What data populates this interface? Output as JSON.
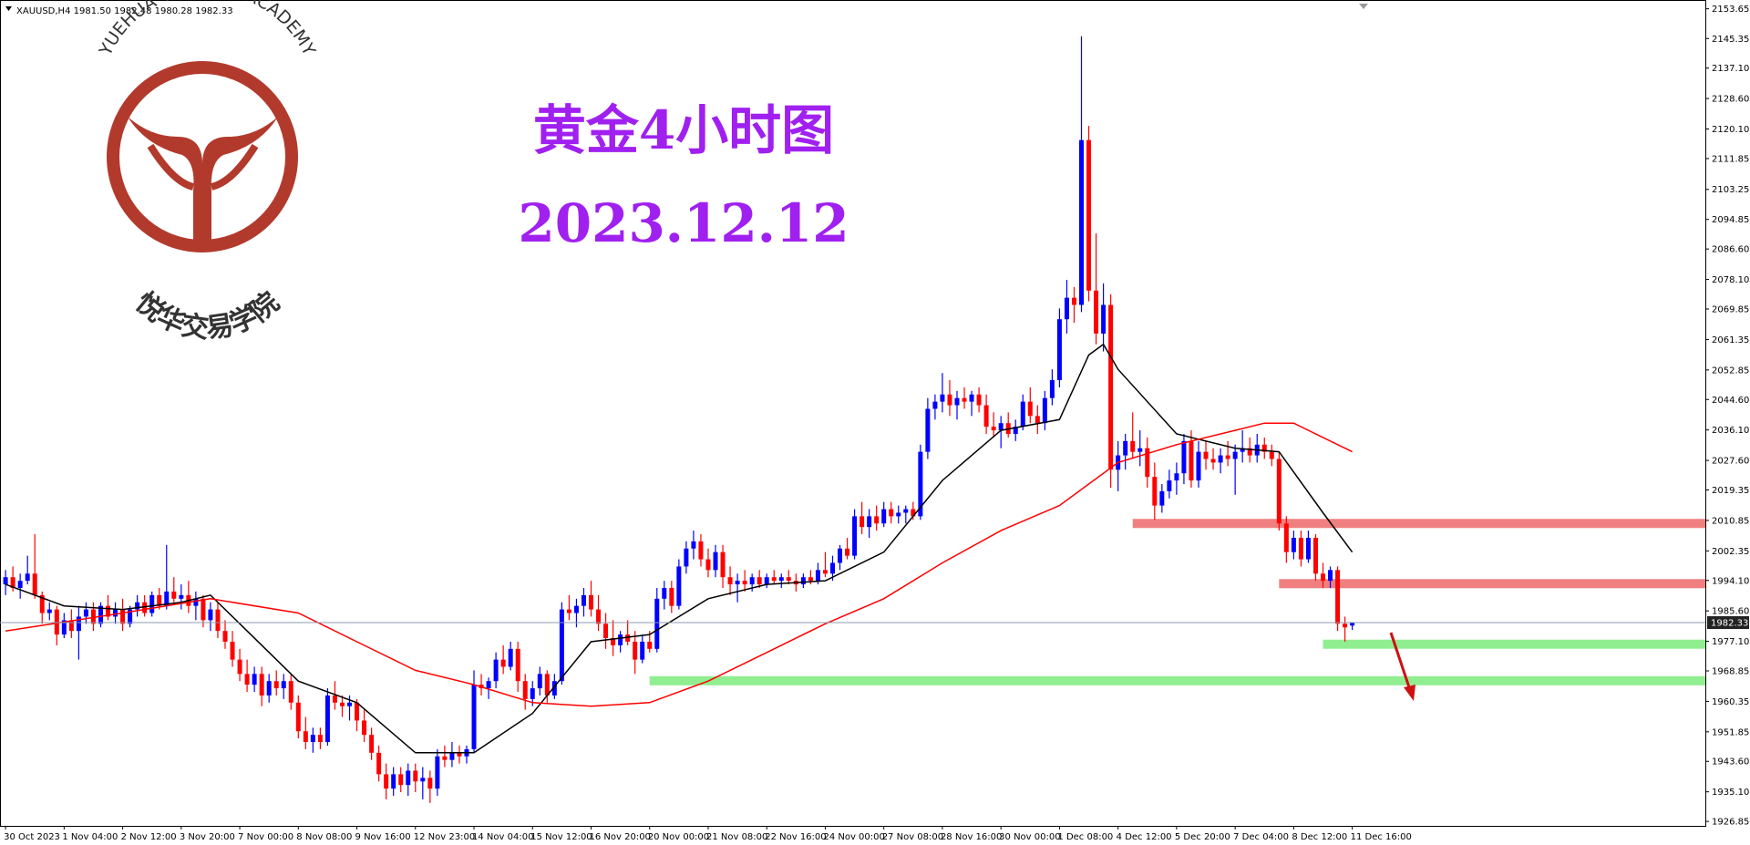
{
  "chart_data": {
    "type": "candlestick",
    "header": "XAUUSD,H4  1981.50 1982.48 1980.28 1982.33",
    "title": "黄金4小时图",
    "subtitle": "2023.12.12",
    "logo": {
      "arc_text": "YUEHUA TRADING ACADEMY",
      "name": "悦华交易学院"
    },
    "up_color": "#0000ff",
    "down_color": "#ff0000",
    "ylim": [
      1925.6,
      2156.1
    ],
    "yticks": [
      2153.65,
      2145.35,
      {
        "value": 2137.1,
        "label": "2137.10"
      },
      {
        "value": 2128.6,
        "label": "2128.60"
      },
      {
        "value": 2120.1,
        "label": "2120.10"
      },
      2111.85,
      2103.25,
      2094.85,
      {
        "value": 2086.6,
        "label": "2086.60"
      },
      {
        "value": 2078.1,
        "label": "2078.10"
      },
      2069.85,
      2061.35,
      2052.85,
      {
        "value": 2044.6,
        "label": "2044.60"
      },
      {
        "value": 2036.1,
        "label": "2036.10"
      },
      {
        "value": 2027.6,
        "label": "2027.60"
      },
      2019.35,
      2010.85,
      2002.35,
      {
        "value": 1994.1,
        "label": "1994.10"
      },
      {
        "value": 1985.6,
        "label": "1985.60"
      },
      {
        "value": 1977.1,
        "label": "1977.10"
      },
      1968.85,
      1960.35,
      1951.85,
      {
        "value": 1943.6,
        "label": "1943.60"
      },
      {
        "value": 1935.1,
        "label": "1935.10"
      },
      1926.85
    ],
    "current_price": {
      "value": 1982.33,
      "label": "1982.33"
    },
    "categories": [
      "30 Oct 2023",
      null,
      null,
      null,
      null,
      null,
      null,
      null,
      "1 Nov 04:00",
      null,
      null,
      null,
      null,
      null,
      null,
      null,
      "2 Nov 12:00",
      null,
      null,
      null,
      null,
      null,
      null,
      null,
      "3 Nov 20:00",
      null,
      null,
      null,
      null,
      null,
      null,
      null,
      "7 Nov 00:00",
      null,
      null,
      null,
      null,
      null,
      null,
      null,
      "8 Nov 08:00",
      null,
      null,
      null,
      null,
      null,
      null,
      null,
      "9 Nov 16:00",
      null,
      null,
      null,
      null,
      null,
      null,
      null,
      "12 Nov 23:00",
      null,
      null,
      null,
      null,
      null,
      null,
      null,
      "14 Nov 04:00",
      null,
      null,
      null,
      null,
      null,
      null,
      null,
      "15 Nov 12:00",
      null,
      null,
      null,
      null,
      null,
      null,
      null,
      "16 Nov 20:00",
      null,
      null,
      null,
      null,
      null,
      null,
      null,
      "20 Nov 00:00",
      null,
      null,
      null,
      null,
      null,
      null,
      null,
      "21 Nov 08:00",
      null,
      null,
      null,
      null,
      null,
      null,
      null,
      "22 Nov 16:00",
      null,
      null,
      null,
      null,
      null,
      null,
      null,
      "24 Nov 00:00",
      null,
      null,
      null,
      null,
      null,
      null,
      null,
      "27 Nov 08:00",
      null,
      null,
      null,
      null,
      null,
      null,
      null,
      "28 Nov 16:00",
      null,
      null,
      null,
      null,
      null,
      null,
      null,
      "30 Nov 00:00",
      null,
      null,
      null,
      null,
      null,
      null,
      null,
      "1 Dec 08:00",
      null,
      null,
      null,
      null,
      null,
      null,
      null,
      "4 Dec 12:00",
      null,
      null,
      null,
      null,
      null,
      null,
      null,
      "5 Dec 20:00",
      null,
      null,
      null,
      null,
      null,
      null,
      null,
      "7 Dec 04:00",
      null,
      null,
      null,
      null,
      null,
      null,
      null,
      "8 Dec 12:00",
      null,
      null,
      null,
      null,
      null,
      null,
      null,
      "11 Dec 16:00"
    ],
    "ohlc": [
      [
        1993,
        1997,
        1990,
        1995
      ],
      [
        1995,
        1998,
        1991,
        1992
      ],
      [
        1992,
        1996,
        1989,
        1994
      ],
      [
        1994,
        2001,
        1993,
        1996
      ],
      [
        1996,
        2007,
        1989,
        1990
      ],
      [
        1990,
        1991,
        1982,
        1985
      ],
      [
        1985,
        1988,
        1983,
        1986
      ],
      [
        1986,
        1987,
        1976,
        1979
      ],
      [
        1979,
        1985,
        1978,
        1983
      ],
      [
        1983,
        1986,
        1978,
        1980
      ],
      [
        1980,
        1987,
        1972,
        1984
      ],
      [
        1984,
        1988,
        1982,
        1986
      ],
      [
        1986,
        1988,
        1980,
        1982
      ],
      [
        1982,
        1988,
        1981,
        1987
      ],
      [
        1987,
        1990,
        1983,
        1984
      ],
      [
        1984,
        1988,
        1982,
        1986
      ],
      [
        1986,
        1989,
        1980,
        1982
      ],
      [
        1982,
        1987,
        1981,
        1986
      ],
      [
        1986,
        1990,
        1984,
        1988
      ],
      [
        1988,
        1990,
        1984,
        1985
      ],
      [
        1985,
        1991,
        1984,
        1990
      ],
      [
        1990,
        1992,
        1986,
        1987
      ],
      [
        1987,
        2004,
        1986,
        1991
      ],
      [
        1991,
        1995,
        1988,
        1989
      ],
      [
        1989,
        1993,
        1986,
        1990
      ],
      [
        1990,
        1994,
        1985,
        1987
      ],
      [
        1987,
        1991,
        1983,
        1989
      ],
      [
        1989,
        1990,
        1981,
        1983
      ],
      [
        1983,
        1988,
        1980,
        1986
      ],
      [
        1986,
        1988,
        1978,
        1980
      ],
      [
        1980,
        1983,
        1975,
        1977
      ],
      [
        1977,
        1980,
        1970,
        1972
      ],
      [
        1972,
        1975,
        1966,
        1968
      ],
      [
        1968,
        1972,
        1963,
        1965
      ],
      [
        1965,
        1970,
        1963,
        1968
      ],
      [
        1968,
        1970,
        1959,
        1962
      ],
      [
        1962,
        1968,
        1960,
        1966
      ],
      [
        1966,
        1969,
        1962,
        1964
      ],
      [
        1964,
        1968,
        1961,
        1966
      ],
      [
        1966,
        1968,
        1958,
        1960
      ],
      [
        1960,
        1962,
        1950,
        1952
      ],
      [
        1952,
        1956,
        1947,
        1949
      ],
      [
        1949,
        1953,
        1946,
        1951
      ],
      [
        1951,
        1953,
        1947,
        1949
      ],
      [
        1949,
        1964,
        1948,
        1962
      ],
      [
        1962,
        1966,
        1958,
        1960
      ],
      [
        1960,
        1962,
        1956,
        1959
      ],
      [
        1959,
        1962,
        1955,
        1960
      ],
      [
        1960,
        1961,
        1952,
        1955
      ],
      [
        1955,
        1958,
        1949,
        1951
      ],
      [
        1951,
        1953,
        1944,
        1946
      ],
      [
        1946,
        1948,
        1938,
        1940
      ],
      [
        1940,
        1943,
        1933,
        1936
      ],
      [
        1936,
        1942,
        1934,
        1940
      ],
      [
        1940,
        1942,
        1935,
        1937
      ],
      [
        1937,
        1943,
        1934,
        1941
      ],
      [
        1941,
        1943,
        1935,
        1938
      ],
      [
        1938,
        1942,
        1933,
        1939
      ],
      [
        1939,
        1941,
        1932,
        1936
      ],
      [
        1936,
        1947,
        1934,
        1945
      ],
      [
        1945,
        1948,
        1942,
        1944
      ],
      [
        1944,
        1949,
        1942,
        1946
      ],
      [
        1946,
        1948,
        1943,
        1945
      ],
      [
        1945,
        1948,
        1943,
        1947
      ],
      [
        1947,
        1969,
        1946,
        1965
      ],
      [
        1965,
        1968,
        1962,
        1964
      ],
      [
        1964,
        1967,
        1961,
        1966
      ],
      [
        1966,
        1974,
        1964,
        1972
      ],
      [
        1972,
        1976,
        1968,
        1970
      ],
      [
        1970,
        1977,
        1969,
        1975
      ],
      [
        1975,
        1977,
        1963,
        1966
      ],
      [
        1966,
        1968,
        1958,
        1961
      ],
      [
        1961,
        1966,
        1959,
        1964
      ],
      [
        1964,
        1970,
        1962,
        1968
      ],
      [
        1968,
        1969,
        1960,
        1962
      ],
      [
        1962,
        1968,
        1961,
        1966
      ],
      [
        1966,
        1988,
        1965,
        1986
      ],
      [
        1986,
        1990,
        1983,
        1985
      ],
      [
        1985,
        1989,
        1981,
        1987
      ],
      [
        1987,
        1992,
        1984,
        1990
      ],
      [
        1990,
        1994,
        1984,
        1986
      ],
      [
        1986,
        1990,
        1980,
        1982
      ],
      [
        1982,
        1985,
        1975,
        1978
      ],
      [
        1978,
        1983,
        1973,
        1976
      ],
      [
        1976,
        1980,
        1974,
        1979
      ],
      [
        1979,
        1983,
        1976,
        1977
      ],
      [
        1977,
        1980,
        1968,
        1972
      ],
      [
        1972,
        1979,
        1971,
        1977
      ],
      [
        1977,
        1980,
        1974,
        1975
      ],
      [
        1975,
        1992,
        1974,
        1989
      ],
      [
        1989,
        1994,
        1986,
        1992
      ],
      [
        1992,
        1994,
        1985,
        1987
      ],
      [
        1987,
        2000,
        1986,
        1998
      ],
      [
        1998,
        2005,
        1996,
        2003
      ],
      [
        2003,
        2008,
        2000,
        2005
      ],
      [
        2005,
        2007,
        1998,
        2000
      ],
      [
        2000,
        2003,
        1995,
        1997
      ],
      [
        1997,
        2004,
        1995,
        2002
      ],
      [
        2002,
        2004,
        1992,
        1995
      ],
      [
        1995,
        1998,
        1990,
        1993
      ],
      [
        1993,
        1996,
        1988,
        1994
      ],
      [
        1994,
        1997,
        1991,
        1993
      ],
      [
        1993,
        1996,
        1991,
        1995
      ],
      [
        1995,
        1997,
        1992,
        1993
      ],
      [
        1993,
        1996,
        1992,
        1995
      ],
      [
        1995,
        1997,
        1993,
        1994
      ],
      [
        1994,
        1996,
        1992,
        1995
      ],
      [
        1995,
        1997,
        1993,
        1994
      ],
      [
        1994,
        1996,
        1991,
        1993
      ],
      [
        1993,
        1996,
        1992,
        1995
      ],
      [
        1995,
        1997,
        1993,
        1994
      ],
      [
        1994,
        1999,
        1993,
        1997
      ],
      [
        1997,
        2002,
        1995,
        1996
      ],
      [
        1996,
        2001,
        1994,
        1999
      ],
      [
        1999,
        2004,
        1997,
        2003
      ],
      [
        2003,
        2006,
        2000,
        2001
      ],
      [
        2001,
        2014,
        2000,
        2012
      ],
      [
        2012,
        2016,
        2007,
        2009
      ],
      [
        2009,
        2014,
        2006,
        2012
      ],
      [
        2012,
        2015,
        2008,
        2010
      ],
      [
        2010,
        2016,
        2009,
        2014
      ],
      [
        2014,
        2016,
        2010,
        2012
      ],
      [
        2012,
        2015,
        2010,
        2013
      ],
      [
        2013,
        2015,
        2010,
        2014
      ],
      [
        2014,
        2016,
        2011,
        2012
      ],
      [
        2012,
        2032,
        2011,
        2030
      ],
      [
        2030,
        2045,
        2028,
        2042
      ],
      [
        2042,
        2046,
        2039,
        2044
      ],
      [
        2044,
        2052,
        2041,
        2046
      ],
      [
        2046,
        2050,
        2040,
        2043
      ],
      [
        2043,
        2047,
        2039,
        2045
      ],
      [
        2045,
        2048,
        2042,
        2044
      ],
      [
        2044,
        2047,
        2040,
        2046
      ],
      [
        2046,
        2048,
        2041,
        2043
      ],
      [
        2043,
        2046,
        2035,
        2037
      ],
      [
        2037,
        2041,
        2034,
        2036
      ],
      [
        2036,
        2040,
        2031,
        2038
      ],
      [
        2038,
        2041,
        2034,
        2035
      ],
      [
        2035,
        2039,
        2033,
        2037
      ],
      [
        2037,
        2046,
        2036,
        2044
      ],
      [
        2044,
        2048,
        2038,
        2040
      ],
      [
        2040,
        2043,
        2035,
        2038
      ],
      [
        2038,
        2047,
        2036,
        2045
      ],
      [
        2045,
        2053,
        2043,
        2050
      ],
      [
        2050,
        2070,
        2048,
        2067
      ],
      [
        2067,
        2078,
        2063,
        2073
      ],
      [
        2073,
        2076,
        2066,
        2071
      ],
      [
        2071,
        2146,
        2069,
        2117
      ],
      [
        2117,
        2121,
        2072,
        2075
      ],
      [
        2075,
        2091,
        2060,
        2063
      ],
      [
        2063,
        2077,
        2058,
        2071
      ],
      [
        2071,
        2074,
        2020,
        2025
      ],
      [
        2025,
        2033,
        2019,
        2029
      ],
      [
        2029,
        2035,
        2025,
        2033
      ],
      [
        2033,
        2041,
        2028,
        2030
      ],
      [
        2030,
        2036,
        2026,
        2031
      ],
      [
        2031,
        2034,
        2020,
        2023
      ],
      [
        2023,
        2027,
        2011,
        2015
      ],
      [
        2015,
        2021,
        2013,
        2019
      ],
      [
        2019,
        2025,
        2017,
        2022
      ],
      [
        2022,
        2027,
        2018,
        2024
      ],
      [
        2024,
        2035,
        2021,
        2033
      ],
      [
        2033,
        2036,
        2020,
        2022
      ],
      [
        2022,
        2033,
        2020,
        2030
      ],
      [
        2030,
        2033,
        2025,
        2028
      ],
      [
        2028,
        2031,
        2025,
        2027
      ],
      [
        2027,
        2031,
        2024,
        2029
      ],
      [
        2029,
        2033,
        2026,
        2028
      ],
      [
        2028,
        2032,
        2018,
        2030
      ],
      [
        2030,
        2036,
        2027,
        2031
      ],
      [
        2031,
        2034,
        2027,
        2029
      ],
      [
        2029,
        2035,
        2027,
        2032
      ],
      [
        2032,
        2034,
        2028,
        2030
      ],
      [
        2030,
        2032,
        2026,
        2028
      ],
      [
        2028,
        2030,
        2008,
        2010
      ],
      [
        2010,
        2012,
        1999,
        2002
      ],
      [
        2002,
        2008,
        2000,
        2006
      ],
      [
        2006,
        2008,
        1998,
        2000
      ],
      [
        2000,
        2008,
        1999,
        2006
      ],
      [
        2006,
        2007,
        1994,
        1996
      ],
      [
        1996,
        1999,
        1992,
        1994
      ],
      [
        1994,
        1998,
        1992,
        1997
      ],
      [
        1997,
        1998,
        1980,
        1982
      ],
      [
        1982,
        1984,
        1977,
        1981
      ],
      [
        1981.5,
        1982.48,
        1980.28,
        1982.33
      ]
    ],
    "ma_lines": [
      {
        "color": "#000000",
        "x": [
          0,
          8,
          16,
          24,
          28,
          32,
          40,
          48,
          56,
          64,
          72,
          80,
          88,
          96,
          104,
          112,
          120,
          128,
          136,
          144,
          148,
          150,
          152,
          160,
          168,
          174,
          180,
          184
        ],
        "values": [
          1993,
          1987,
          1986,
          1988,
          1990,
          1982,
          1966,
          1960,
          1946,
          1946,
          1957,
          1977,
          1979,
          1989,
          1993,
          1994,
          2002,
          2022,
          2036,
          2039,
          2057,
          2060,
          2053,
          2035,
          2031,
          2030,
          2013,
          2002
        ]
      },
      {
        "color": "#ff0000",
        "x": [
          0,
          16,
          28,
          40,
          48,
          56,
          64,
          72,
          80,
          88,
          96,
          104,
          112,
          120,
          128,
          136,
          144,
          152,
          160,
          168,
          172,
          176,
          180,
          184
        ],
        "values": [
          1980,
          1985,
          1989,
          1985,
          1977,
          1969,
          1965,
          1960,
          1959,
          1960,
          1966,
          1974,
          1982,
          1989,
          1999,
          2008,
          2015,
          2027,
          2032,
          2036,
          2038,
          2038,
          2034,
          2030
        ]
      }
    ],
    "zones": [
      {
        "from": 154,
        "value": 2010,
        "color": "#f08080"
      },
      {
        "from": 174,
        "value": 1993.2,
        "color": "#f08080"
      },
      {
        "from": 180,
        "value": 1976.3,
        "color": "#90ee90"
      },
      {
        "from": 88,
        "value": 1966.1,
        "color": "#90ee90"
      }
    ]
  }
}
